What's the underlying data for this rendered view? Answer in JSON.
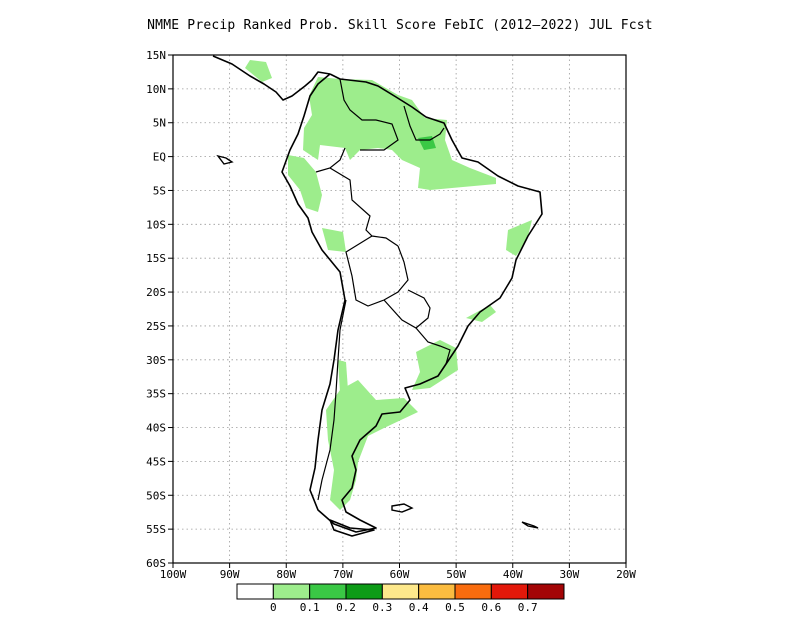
{
  "title": "NMME Precip Ranked Prob. Skill Score FebIC (2012–2022) JUL Fcst",
  "map": {
    "lon_range": [
      -100,
      -20
    ],
    "lat_range": [
      -60,
      15
    ],
    "lat_labels": [
      "15N",
      "10N",
      "5N",
      "EQ",
      "5S",
      "10S",
      "15S",
      "20S",
      "25S",
      "30S",
      "35S",
      "40S",
      "45S",
      "50S",
      "55S",
      "60S"
    ],
    "lon_labels": [
      "100W",
      "90W",
      "80W",
      "70W",
      "60W",
      "50W",
      "40W",
      "30W",
      "20W"
    ],
    "grid": "dotted"
  },
  "colorbar": {
    "colors": [
      "#ffffff",
      "#9ded8c",
      "#3ac845",
      "#0d9b17",
      "#fde88b",
      "#fbbc40",
      "#f96c0e",
      "#e3180a",
      "#a30506"
    ],
    "labels": [
      "0",
      "0.1",
      "0.2",
      "0.3",
      "0.4",
      "0.5",
      "0.6",
      "0.7"
    ]
  }
}
